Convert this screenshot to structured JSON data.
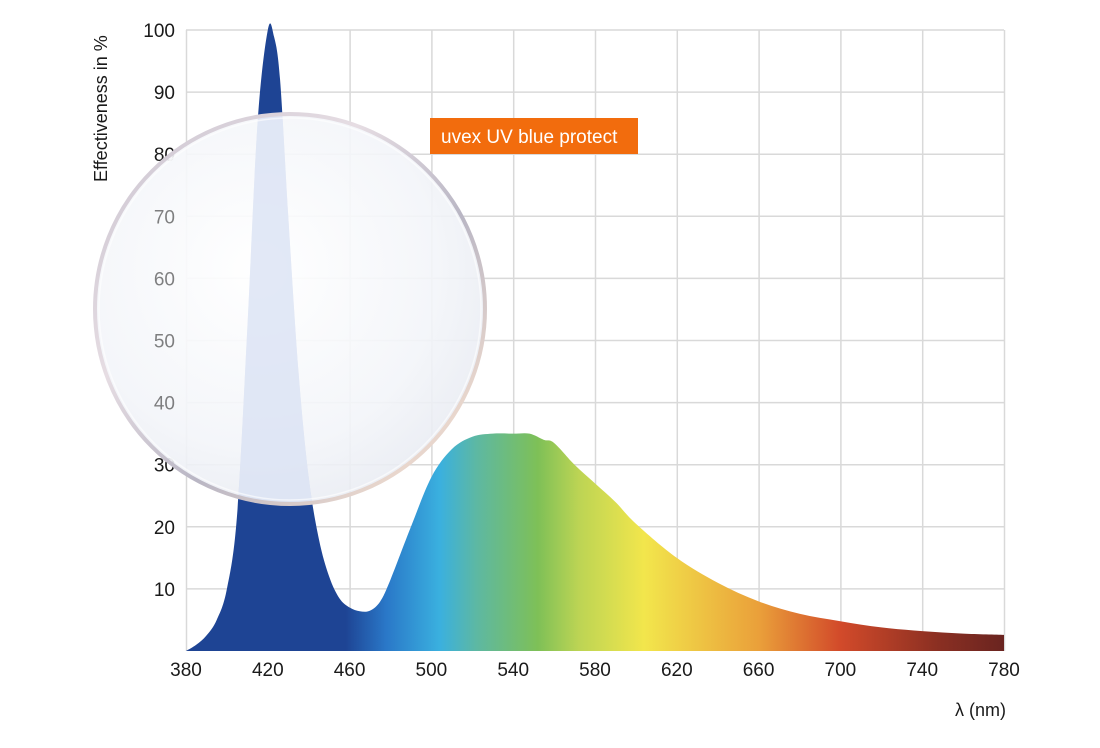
{
  "chart_data": {
    "type": "area",
    "ylabel": "Effectiveness in %",
    "xlabel": "λ (nm)",
    "xlim": [
      380,
      780
    ],
    "ylim": [
      0,
      100
    ],
    "x_ticks": [
      "380",
      "420",
      "460",
      "500",
      "540",
      "580",
      "620",
      "660",
      "700",
      "740",
      "780"
    ],
    "y_ticks": [
      "10",
      "20",
      "30",
      "40",
      "50",
      "60",
      "70",
      "80",
      "90",
      "100"
    ],
    "grid": true,
    "annotation": "uvex UV blue protect",
    "series": [
      {
        "x": [
          380,
          385,
          390,
          395,
          400,
          405,
          410,
          415,
          420,
          423,
          426,
          430,
          435,
          440,
          445,
          450,
          455,
          460,
          465,
          470,
          475,
          480,
          490,
          500,
          510,
          520,
          530,
          540,
          548,
          555,
          560,
          570,
          580,
          590,
          600,
          620,
          640,
          660,
          680,
          700,
          720,
          740,
          760,
          780
        ],
        "values": [
          0,
          1,
          2.5,
          5,
          10,
          22,
          52,
          85,
          100,
          99,
          92,
          70,
          45,
          28,
          18,
          12,
          8.5,
          7,
          6.4,
          6.5,
          8,
          11.5,
          20,
          28,
          32.5,
          34.5,
          35,
          35,
          35,
          34,
          33.5,
          30,
          27,
          24,
          20.5,
          15,
          11,
          8,
          6,
          4.8,
          3.8,
          3.2,
          2.8,
          2.6
        ]
      }
    ],
    "colors": {
      "blue_peak": "#1e4494",
      "cyan": "#3ab0df",
      "teal": "#5db8a3",
      "green": "#7ec057",
      "yellow": "#f2e64c",
      "orange": "#eaa03a",
      "red": "#d24a2a",
      "dark_red": "#6a2420",
      "badge": "#f26c0d",
      "grid": "#d9d9d9"
    }
  },
  "lens_icon": "lens-icon"
}
